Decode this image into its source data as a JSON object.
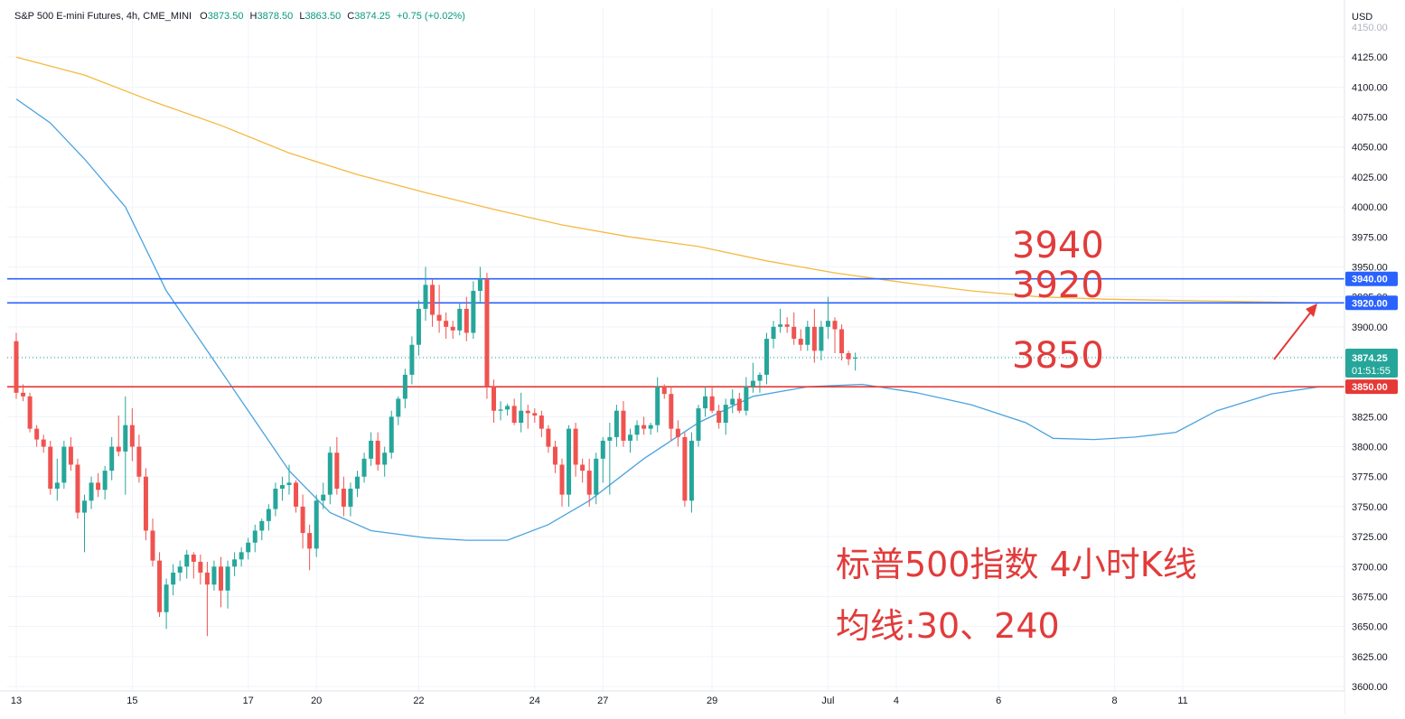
{
  "header": {
    "symbol": "S&P 500 E-mini Futures",
    "interval": "4h",
    "exchange": "CME_MINI",
    "open_label": "O",
    "open": "3873.50",
    "high_label": "H",
    "high": "3878.50",
    "low_label": "L",
    "low": "3863.50",
    "close_label": "C",
    "close": "3874.25",
    "change": "+0.75 (+0.02%)"
  },
  "currency": "USD",
  "annotations": {
    "title_line1": "标普500指数 4小时K线",
    "title_line2": "均线:30、240",
    "level_3940": "3940",
    "level_3920": "3920",
    "level_3850": "3850"
  },
  "colors": {
    "up": "#26a69a",
    "down": "#ef5350",
    "ma30": "#4aa3df",
    "ma240": "#f5b942",
    "level_blue": "#2962ff",
    "level_red": "#e53935",
    "annotation": "#e23b3b"
  },
  "chart_data": {
    "type": "candlestick",
    "ylim": [
      3600,
      4150
    ],
    "y_ticks": [
      3600,
      3625,
      3650,
      3675,
      3700,
      3725,
      3750,
      3775,
      3800,
      3825,
      3850,
      3875,
      3900,
      3925,
      3950,
      3975,
      4000,
      4025,
      4050,
      4075,
      4100,
      4125
    ],
    "x_labels": [
      {
        "label": "13",
        "bar": 0
      },
      {
        "label": "15",
        "bar": 17
      },
      {
        "label": "17",
        "bar": 34
      },
      {
        "label": "20",
        "bar": 44
      },
      {
        "label": "22",
        "bar": 59
      },
      {
        "label": "24",
        "bar": 76
      },
      {
        "label": "27",
        "bar": 86
      },
      {
        "label": "29",
        "bar": 102
      },
      {
        "label": "Jul",
        "bar": 119
      },
      {
        "label": "4",
        "bar": 129
      },
      {
        "label": "6",
        "bar": 144
      },
      {
        "label": "8",
        "bar": 161
      },
      {
        "label": "11",
        "bar": 171
      }
    ],
    "candles": [
      [
        3888,
        3895,
        3840,
        3845
      ],
      [
        3845,
        3852,
        3838,
        3842
      ],
      [
        3842,
        3845,
        3812,
        3815
      ],
      [
        3815,
        3818,
        3800,
        3806
      ],
      [
        3806,
        3810,
        3795,
        3800
      ],
      [
        3800,
        3805,
        3760,
        3765
      ],
      [
        3765,
        3790,
        3755,
        3770
      ],
      [
        3770,
        3805,
        3765,
        3800
      ],
      [
        3800,
        3808,
        3780,
        3785
      ],
      [
        3785,
        3790,
        3740,
        3745
      ],
      [
        3745,
        3760,
        3712,
        3755
      ],
      [
        3755,
        3775,
        3748,
        3770
      ],
      [
        3770,
        3778,
        3758,
        3764
      ],
      [
        3764,
        3784,
        3756,
        3780
      ],
      [
        3780,
        3808,
        3772,
        3800
      ],
      [
        3800,
        3826,
        3792,
        3796
      ],
      [
        3796,
        3842,
        3760,
        3818
      ],
      [
        3818,
        3832,
        3788,
        3800
      ],
      [
        3800,
        3810,
        3770,
        3775
      ],
      [
        3775,
        3782,
        3722,
        3730
      ],
      [
        3730,
        3740,
        3700,
        3705
      ],
      [
        3705,
        3712,
        3658,
        3662
      ],
      [
        3662,
        3690,
        3648,
        3685
      ],
      [
        3685,
        3702,
        3676,
        3695
      ],
      [
        3695,
        3705,
        3688,
        3700
      ],
      [
        3700,
        3714,
        3690,
        3710
      ],
      [
        3710,
        3712,
        3690,
        3704
      ],
      [
        3704,
        3710,
        3685,
        3695
      ],
      [
        3695,
        3704,
        3642,
        3685
      ],
      [
        3685,
        3705,
        3680,
        3700
      ],
      [
        3700,
        3708,
        3666,
        3680
      ],
      [
        3680,
        3705,
        3665,
        3700
      ],
      [
        3700,
        3712,
        3692,
        3706
      ],
      [
        3706,
        3716,
        3700,
        3712
      ],
      [
        3712,
        3724,
        3706,
        3720
      ],
      [
        3720,
        3735,
        3712,
        3730
      ],
      [
        3730,
        3740,
        3722,
        3738
      ],
      [
        3738,
        3752,
        3730,
        3748
      ],
      [
        3748,
        3770,
        3742,
        3765
      ],
      [
        3765,
        3775,
        3755,
        3768
      ],
      [
        3768,
        3785,
        3760,
        3770
      ],
      [
        3770,
        3772,
        3745,
        3750
      ],
      [
        3750,
        3760,
        3715,
        3728
      ],
      [
        3728,
        3735,
        3697,
        3715
      ],
      [
        3715,
        3760,
        3708,
        3755
      ],
      [
        3755,
        3770,
        3748,
        3760
      ],
      [
        3760,
        3800,
        3752,
        3795
      ],
      [
        3795,
        3808,
        3760,
        3765
      ],
      [
        3765,
        3775,
        3742,
        3750
      ],
      [
        3750,
        3770,
        3742,
        3765
      ],
      [
        3765,
        3780,
        3758,
        3775
      ],
      [
        3775,
        3795,
        3770,
        3790
      ],
      [
        3790,
        3812,
        3784,
        3805
      ],
      [
        3805,
        3812,
        3780,
        3785
      ],
      [
        3785,
        3800,
        3775,
        3795
      ],
      [
        3795,
        3830,
        3790,
        3825
      ],
      [
        3825,
        3842,
        3818,
        3840
      ],
      [
        3840,
        3865,
        3832,
        3860
      ],
      [
        3860,
        3892,
        3852,
        3885
      ],
      [
        3885,
        3922,
        3876,
        3915
      ],
      [
        3915,
        3950,
        3905,
        3935
      ],
      [
        3935,
        3940,
        3900,
        3910
      ],
      [
        3910,
        3935,
        3895,
        3905
      ],
      [
        3905,
        3912,
        3890,
        3900
      ],
      [
        3900,
        3905,
        3890,
        3897
      ],
      [
        3897,
        3920,
        3893,
        3915
      ],
      [
        3915,
        3925,
        3888,
        3895
      ],
      [
        3895,
        3938,
        3890,
        3930
      ],
      [
        3930,
        3950,
        3920,
        3940
      ],
      [
        3940,
        3945,
        3840,
        3850
      ],
      [
        3850,
        3856,
        3820,
        3830
      ],
      [
        3830,
        3838,
        3822,
        3831
      ],
      [
        3831,
        3836,
        3826,
        3834
      ],
      [
        3834,
        3840,
        3818,
        3820
      ],
      [
        3820,
        3845,
        3812,
        3830
      ],
      [
        3830,
        3835,
        3815,
        3828
      ],
      [
        3828,
        3832,
        3820,
        3826
      ],
      [
        3826,
        3830,
        3808,
        3815
      ],
      [
        3815,
        3818,
        3795,
        3800
      ],
      [
        3800,
        3805,
        3778,
        3785
      ],
      [
        3785,
        3790,
        3750,
        3760
      ],
      [
        3760,
        3818,
        3750,
        3815
      ],
      [
        3815,
        3820,
        3775,
        3785
      ],
      [
        3785,
        3790,
        3770,
        3780
      ],
      [
        3780,
        3790,
        3750,
        3760
      ],
      [
        3760,
        3795,
        3752,
        3790
      ],
      [
        3790,
        3808,
        3770,
        3805
      ],
      [
        3805,
        3820,
        3760,
        3808
      ],
      [
        3808,
        3835,
        3800,
        3830
      ],
      [
        3830,
        3838,
        3800,
        3805
      ],
      [
        3805,
        3815,
        3795,
        3810
      ],
      [
        3810,
        3822,
        3805,
        3818
      ],
      [
        3818,
        3825,
        3810,
        3815
      ],
      [
        3815,
        3820,
        3810,
        3818
      ],
      [
        3818,
        3858,
        3812,
        3850
      ],
      [
        3850,
        3852,
        3840,
        3844
      ],
      [
        3844,
        3850,
        3805,
        3815
      ],
      [
        3815,
        3822,
        3800,
        3808
      ],
      [
        3808,
        3812,
        3750,
        3755
      ],
      [
        3755,
        3812,
        3745,
        3805
      ],
      [
        3805,
        3835,
        3800,
        3832
      ],
      [
        3832,
        3850,
        3825,
        3842
      ],
      [
        3842,
        3850,
        3828,
        3830
      ],
      [
        3830,
        3835,
        3815,
        3820
      ],
      [
        3820,
        3840,
        3810,
        3835
      ],
      [
        3835,
        3848,
        3828,
        3840
      ],
      [
        3840,
        3845,
        3828,
        3830
      ],
      [
        3830,
        3858,
        3826,
        3850
      ],
      [
        3850,
        3870,
        3845,
        3855
      ],
      [
        3855,
        3862,
        3845,
        3860
      ],
      [
        3860,
        3895,
        3852,
        3890
      ],
      [
        3890,
        3905,
        3882,
        3900
      ],
      [
        3900,
        3915,
        3895,
        3902
      ],
      [
        3902,
        3908,
        3895,
        3900
      ],
      [
        3900,
        3912,
        3885,
        3890
      ],
      [
        3890,
        3898,
        3880,
        3885
      ],
      [
        3885,
        3905,
        3880,
        3900
      ],
      [
        3900,
        3915,
        3870,
        3880
      ],
      [
        3880,
        3905,
        3872,
        3900
      ],
      [
        3900,
        3925,
        3890,
        3905
      ],
      [
        3905,
        3908,
        3878,
        3898
      ],
      [
        3898,
        3902,
        3872,
        3878
      ],
      [
        3878,
        3880,
        3868,
        3873
      ],
      [
        3873.5,
        3878.5,
        3863.5,
        3874.25
      ]
    ],
    "ma30_anchors": [
      [
        0,
        4090
      ],
      [
        5,
        4070
      ],
      [
        10,
        4040
      ],
      [
        16,
        4000
      ],
      [
        22,
        3930
      ],
      [
        28,
        3880
      ],
      [
        34,
        3830
      ],
      [
        40,
        3780
      ],
      [
        46,
        3745
      ],
      [
        52,
        3730
      ],
      [
        60,
        3724
      ],
      [
        66,
        3722
      ],
      [
        72,
        3722
      ],
      [
        78,
        3735
      ],
      [
        84,
        3755
      ],
      [
        92,
        3790
      ],
      [
        100,
        3820
      ],
      [
        108,
        3842
      ],
      [
        116,
        3850
      ],
      [
        124,
        3852
      ],
      [
        132,
        3845
      ],
      [
        140,
        3835
      ],
      [
        148,
        3820
      ],
      [
        152,
        3807
      ],
      [
        158,
        3806
      ],
      [
        164,
        3808
      ],
      [
        170,
        3812
      ],
      [
        176,
        3830
      ],
      [
        184,
        3844
      ],
      [
        191,
        3850
      ]
    ],
    "ma240_anchors": [
      [
        0,
        4125
      ],
      [
        10,
        4110
      ],
      [
        20,
        4088
      ],
      [
        30,
        4068
      ],
      [
        40,
        4045
      ],
      [
        50,
        4027
      ],
      [
        60,
        4012
      ],
      [
        70,
        3998
      ],
      [
        80,
        3985
      ],
      [
        90,
        3975
      ],
      [
        100,
        3967
      ],
      [
        110,
        3955
      ],
      [
        120,
        3945
      ],
      [
        130,
        3937
      ],
      [
        140,
        3930
      ],
      [
        150,
        3925
      ],
      [
        160,
        3923
      ],
      [
        170,
        3922
      ],
      [
        180,
        3921
      ],
      [
        191,
        3920
      ]
    ],
    "levels": [
      {
        "value": 3940,
        "label": "3940.00",
        "color": "#2962ff"
      },
      {
        "value": 3920,
        "label": "3920.00",
        "color": "#2962ff"
      },
      {
        "value": 3850,
        "label": "3850.00",
        "color": "#e53935"
      }
    ],
    "last_price": {
      "value": 3874.25,
      "label": "3874.25",
      "countdown": "01:51:55"
    }
  }
}
